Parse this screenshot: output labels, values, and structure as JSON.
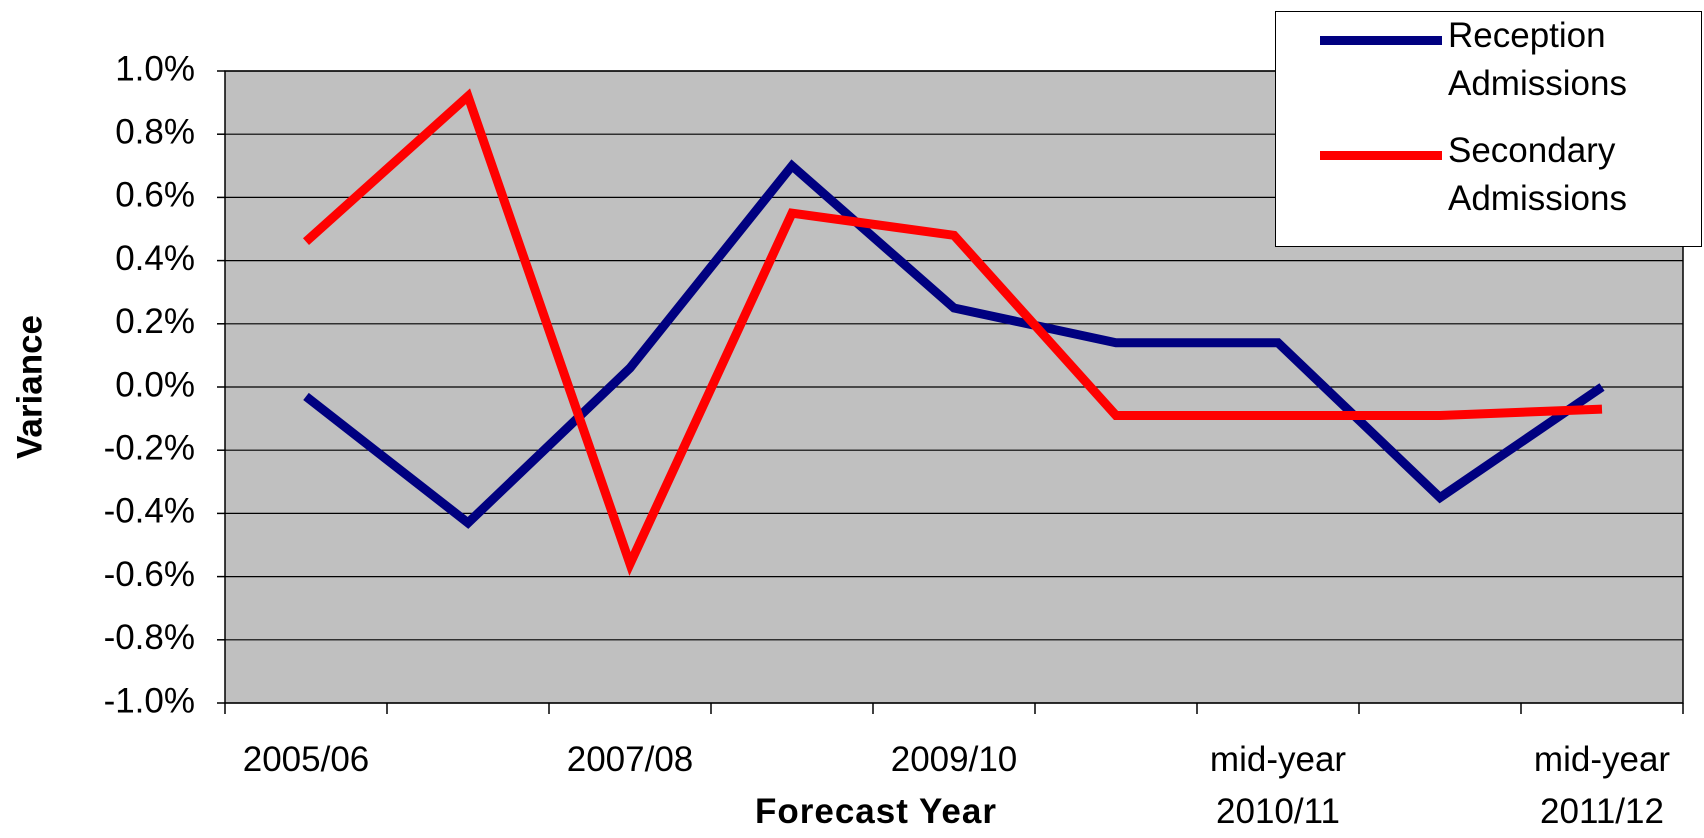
{
  "chart_data": {
    "type": "line",
    "y_label": "Variance",
    "x_label": "Forecast Year",
    "categories": [
      "2005/06",
      null,
      "2007/08",
      null,
      "2009/10",
      null,
      "mid-year 2010/11",
      null,
      "mid-year 2011/12"
    ],
    "series": [
      {
        "name": "Reception Admissions",
        "color": "#000080",
        "values": [
          -0.03,
          -0.43,
          0.06,
          0.7,
          0.25,
          0.14,
          0.14,
          -0.35,
          0.0
        ]
      },
      {
        "name": "Secondary Admissions",
        "color": "#ff0000",
        "values": [
          0.46,
          0.92,
          -0.56,
          0.55,
          0.48,
          -0.09,
          -0.09,
          -0.09,
          -0.07
        ]
      }
    ],
    "ylim": [
      -1.0,
      1.0
    ],
    "yticks": [
      {
        "value": 1.0,
        "label": "1.0%"
      },
      {
        "value": 0.8,
        "label": "0.8%"
      },
      {
        "value": 0.6,
        "label": "0.6%"
      },
      {
        "value": 0.4,
        "label": "0.4%"
      },
      {
        "value": 0.2,
        "label": "0.2%"
      },
      {
        "value": 0.0,
        "label": "0.0%"
      },
      {
        "value": -0.2,
        "label": "-0.2%"
      },
      {
        "value": -0.4,
        "label": "-0.4%"
      },
      {
        "value": -0.6,
        "label": "-0.6%"
      },
      {
        "value": -0.8,
        "label": "-0.8%"
      },
      {
        "value": -1.0,
        "label": "-1.0%"
      }
    ],
    "grid": true,
    "legend": "top-right",
    "plot_background": "#c0c0c0"
  }
}
